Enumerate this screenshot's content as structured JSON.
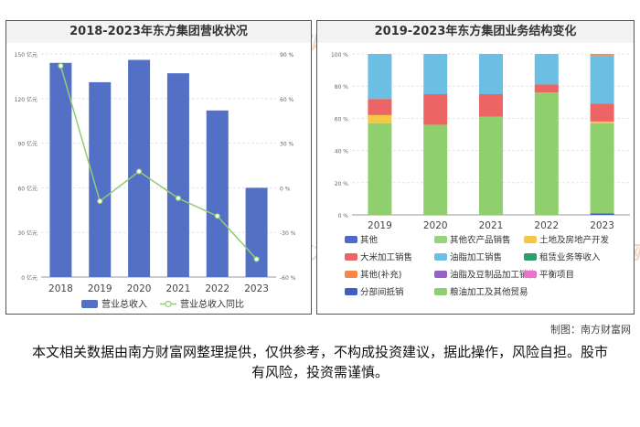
{
  "credit": "制图：南方财富网",
  "disclaimer": "本文相关数据由南方财富网整理提供，仅供参考，不构成投资建议，据此操作，风险自担。股市有风险，投资需谨慎。",
  "watermark": "南方财富网",
  "chart_data": [
    {
      "type": "bar",
      "title": "2018-2023年东方集团营收状况",
      "categories": [
        "2018",
        "2019",
        "2020",
        "2021",
        "2022",
        "2023"
      ],
      "y_left_ticks": [
        "0 亿元",
        "30 亿元",
        "60 亿元",
        "90 亿元",
        "120 亿元",
        "150 亿元"
      ],
      "y_right_ticks": [
        "-60 %",
        "-30 %",
        "0 %",
        "30 %",
        "60 %",
        "90 %"
      ],
      "ylim": [
        0,
        150
      ],
      "y2lim": [
        -60,
        90
      ],
      "series": [
        {
          "name": "营业总收入",
          "type": "bar",
          "axis": "left",
          "color": "#5470c6",
          "values": [
            144,
            131,
            146,
            137,
            112,
            60
          ]
        },
        {
          "name": "营业总收入同比",
          "type": "line",
          "axis": "right",
          "color": "#91cc75",
          "values": [
            82,
            -9,
            11,
            -7,
            -19,
            -48
          ]
        }
      ],
      "legend_position": "bottom"
    },
    {
      "type": "bar",
      "stacked": true,
      "title": "2019-2023年东方集团业务结构变化",
      "categories": [
        "2019",
        "2020",
        "2021",
        "2022",
        "2023"
      ],
      "y_ticks": [
        "0 %",
        "20 %",
        "40 %",
        "60 %",
        "80 %",
        "100 %"
      ],
      "ylim": [
        0,
        100
      ],
      "series": [
        {
          "name": "分部间抵销",
          "color": "#3f5ec0",
          "values": [
            0,
            0,
            0,
            0,
            1
          ]
        },
        {
          "name": "粮油加工及其他贸易",
          "color": "#8fcf6e",
          "values": [
            57,
            56,
            61,
            76,
            56
          ]
        },
        {
          "name": "土地及房地产开发",
          "color": "#f6c744",
          "values": [
            5,
            0,
            0,
            0,
            1
          ]
        },
        {
          "name": "大米加工销售",
          "color": "#ec6464",
          "values": [
            10,
            19,
            14,
            5,
            11
          ]
        },
        {
          "name": "油脂加工销售",
          "color": "#6cbfe2",
          "values": [
            28,
            25,
            25,
            19,
            30
          ]
        },
        {
          "name": "其他(补充)",
          "color": "#f5894a",
          "values": [
            0,
            0,
            0,
            0,
            1
          ]
        },
        {
          "name": "其他",
          "color": "#4e6bc9",
          "values": [
            0,
            0,
            0,
            0,
            0
          ]
        },
        {
          "name": "其他农产品销售",
          "color": "#98d47a",
          "values": [
            0,
            0,
            0,
            0,
            0
          ]
        },
        {
          "name": "租赁业务等收入",
          "color": "#2e9e6c",
          "values": [
            0,
            0,
            0,
            0,
            0
          ]
        },
        {
          "name": "油脂及豆制品加工销售",
          "color": "#9a61c4",
          "values": [
            0,
            0,
            0,
            0,
            0
          ]
        },
        {
          "name": "平衡项目",
          "color": "#ea72c8",
          "values": [
            0,
            0,
            0,
            0,
            0
          ]
        }
      ],
      "legend_order": [
        "其他",
        "其他农产品销售",
        "土地及房地产开发",
        "大米加工销售",
        "油脂加工销售",
        "租赁业务等收入",
        "其他(补充)",
        "油脂及豆制品加工销售",
        "平衡项目",
        "分部间抵销",
        "粮油加工及其他贸易"
      ],
      "legend_position": "bottom"
    }
  ]
}
